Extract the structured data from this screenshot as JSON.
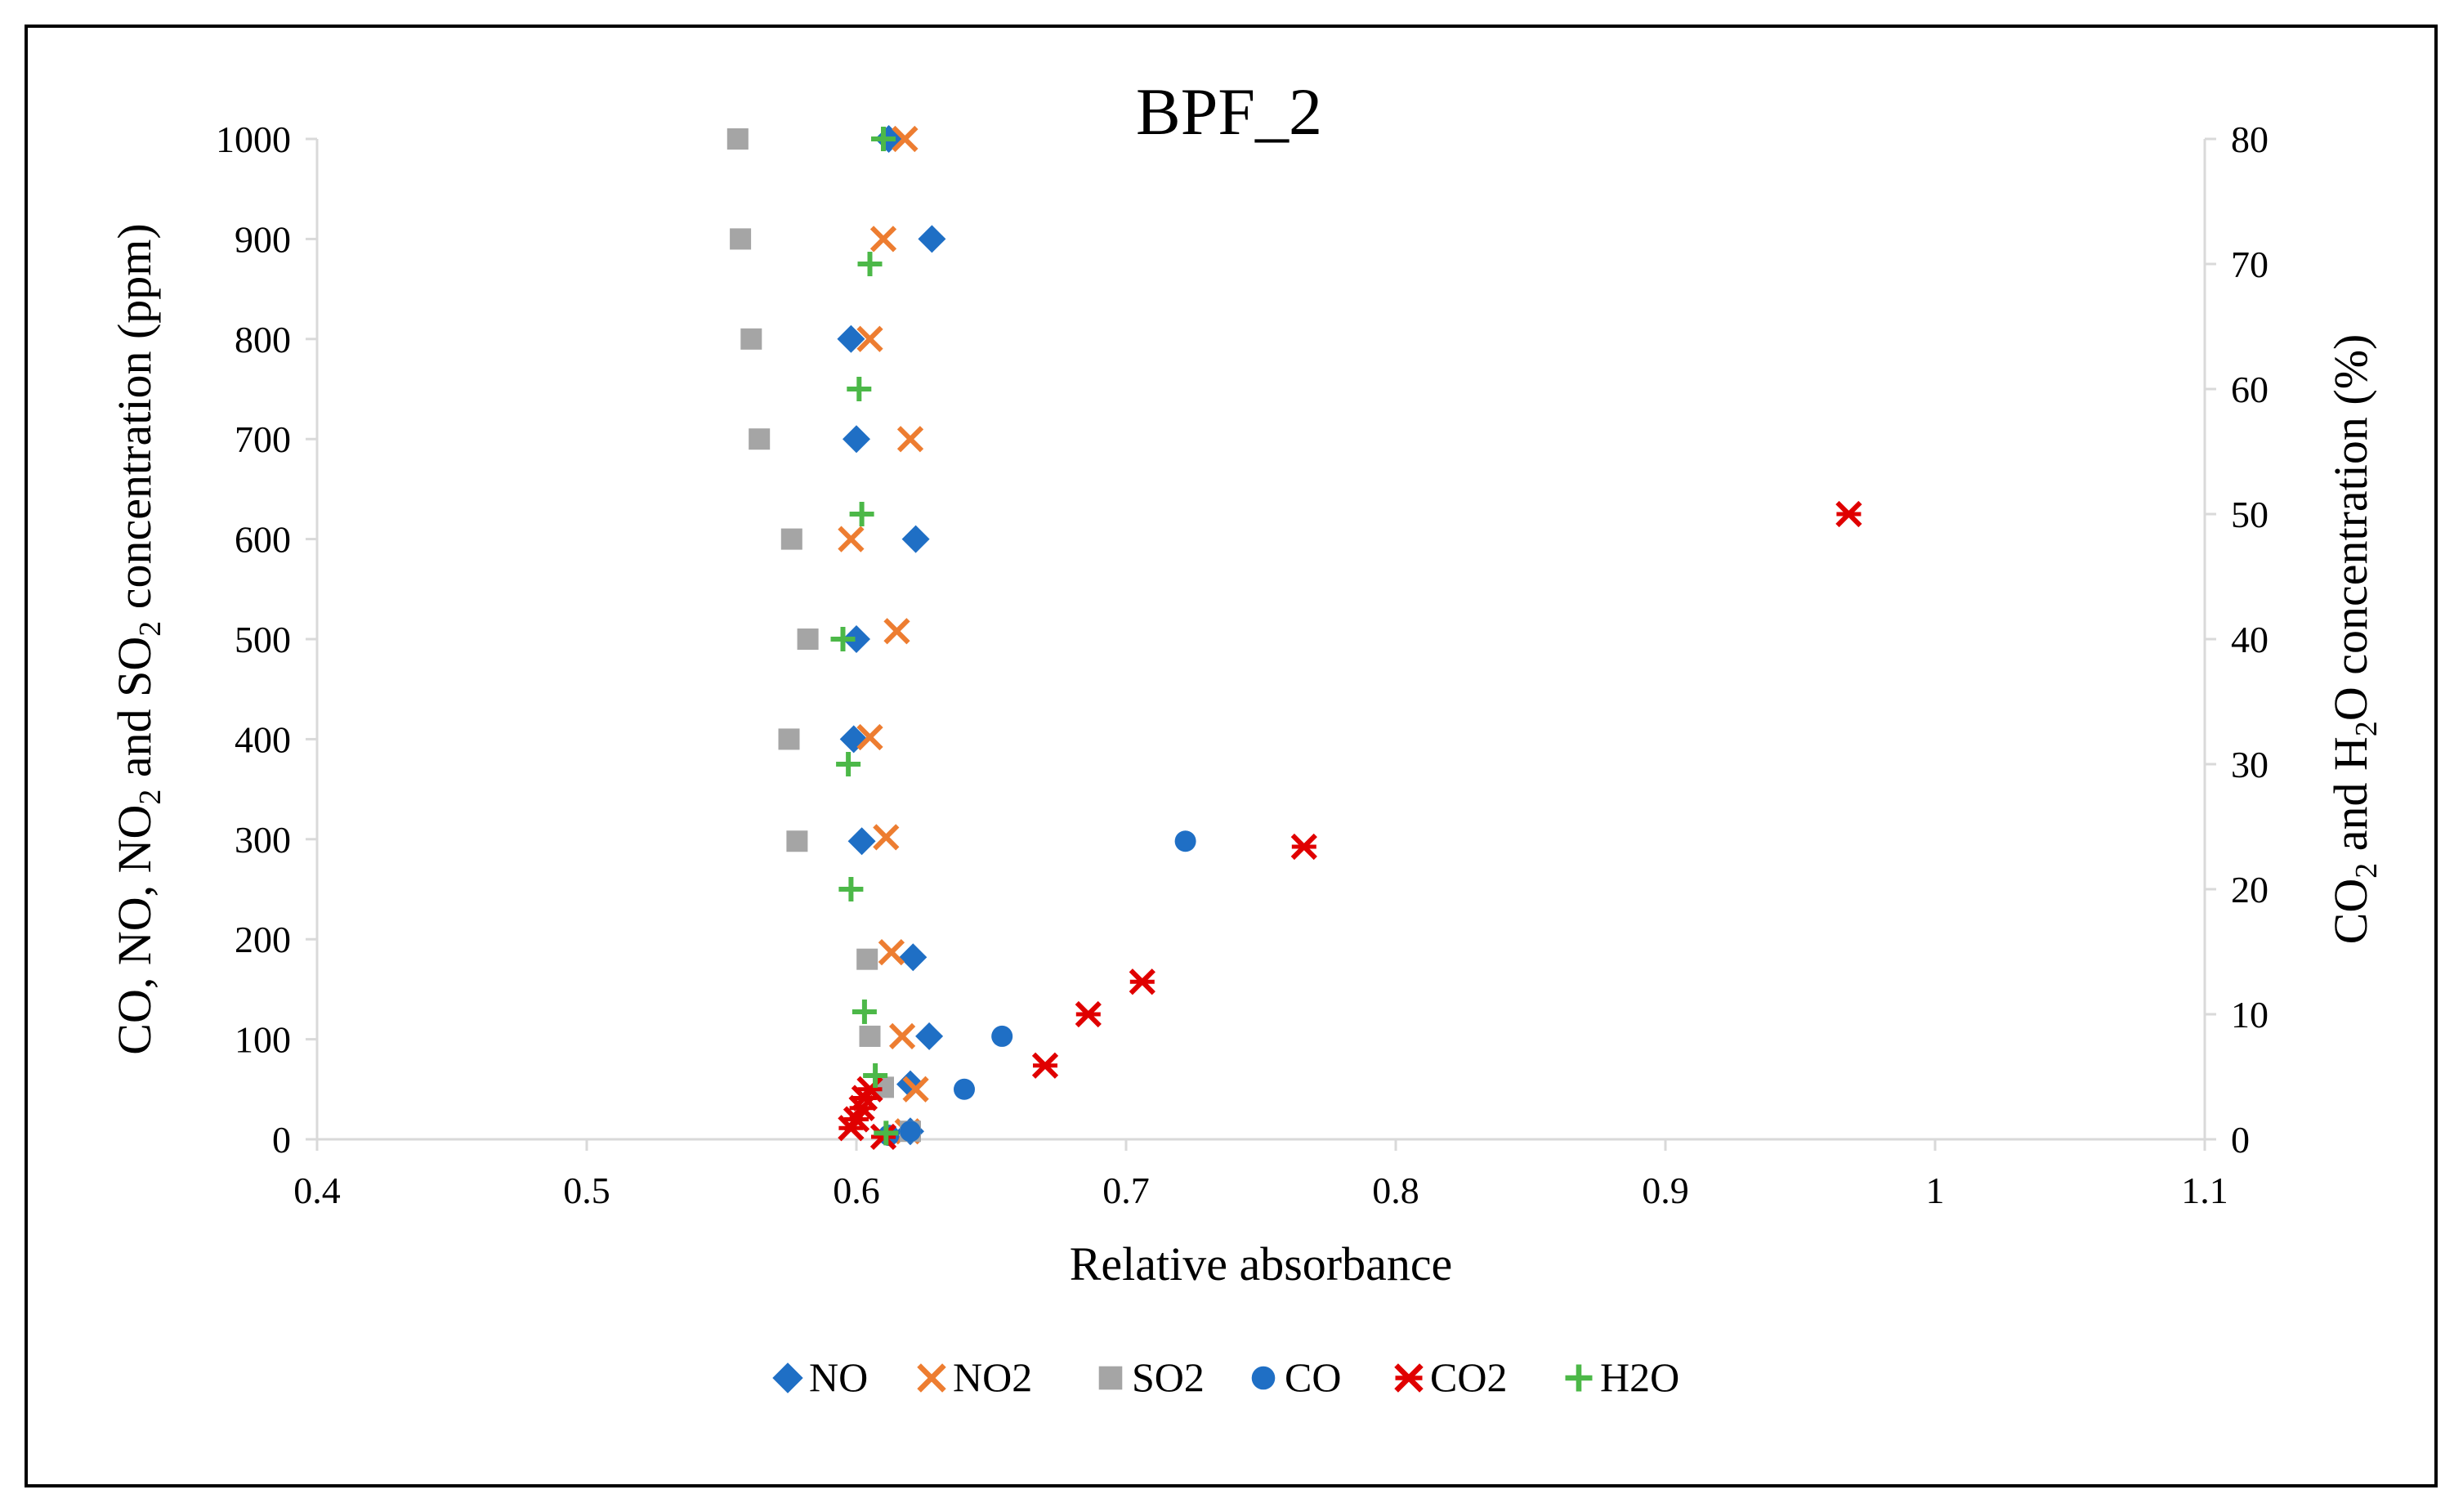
{
  "chart_data": {
    "type": "scatter",
    "title": "BPF_2",
    "xlabel": "Relative absorbance",
    "ylabel": {
      "parts": [
        {
          "t": "CO, NO, NO"
        },
        {
          "t": "2",
          "sub": true
        },
        {
          "t": " and SO"
        },
        {
          "t": "2",
          "sub": true
        },
        {
          "t": " concentration (ppm)"
        }
      ]
    },
    "y2label": {
      "parts": [
        {
          "t": "CO"
        },
        {
          "t": "2",
          "sub": true
        },
        {
          "t": " and H"
        },
        {
          "t": "2",
          "sub": true
        },
        {
          "t": "O concentration (%)"
        }
      ]
    },
    "xlim": [
      0.4,
      1.1
    ],
    "ylim": [
      0,
      1000
    ],
    "y2lim": [
      0,
      80
    ],
    "xticks": [
      0.4,
      0.5,
      0.6,
      0.7,
      0.8,
      0.9,
      1,
      1.1
    ],
    "yticks": [
      0,
      100,
      200,
      300,
      400,
      500,
      600,
      700,
      800,
      900,
      1000
    ],
    "y2ticks": [
      0,
      10,
      20,
      30,
      40,
      50,
      60,
      70,
      80
    ],
    "grid": false,
    "legend_position": "bottom",
    "series": [
      {
        "name": "NO",
        "axis": "left",
        "marker": "diamond",
        "color": "#1F6FC5",
        "points": [
          [
            0.612,
            1000
          ],
          [
            0.628,
            900
          ],
          [
            0.598,
            800
          ],
          [
            0.6,
            700
          ],
          [
            0.622,
            600
          ],
          [
            0.6,
            500
          ],
          [
            0.599,
            400
          ],
          [
            0.602,
            298
          ],
          [
            0.621,
            182
          ],
          [
            0.627,
            103
          ],
          [
            0.62,
            55
          ],
          [
            0.62,
            8
          ]
        ]
      },
      {
        "name": "NO2",
        "axis": "left",
        "marker": "x",
        "color": "#ED7D31",
        "points": [
          [
            0.618,
            1000
          ],
          [
            0.61,
            900
          ],
          [
            0.605,
            800
          ],
          [
            0.62,
            700
          ],
          [
            0.598,
            600
          ],
          [
            0.615,
            508
          ],
          [
            0.605,
            402
          ],
          [
            0.611,
            302
          ],
          [
            0.613,
            187
          ],
          [
            0.617,
            103
          ],
          [
            0.622,
            50
          ],
          [
            0.619,
            8
          ]
        ]
      },
      {
        "name": "SO2",
        "axis": "left",
        "marker": "square",
        "color": "#A5A5A5",
        "points": [
          [
            0.556,
            1000
          ],
          [
            0.557,
            900
          ],
          [
            0.561,
            800
          ],
          [
            0.564,
            700
          ],
          [
            0.576,
            600
          ],
          [
            0.582,
            500
          ],
          [
            0.575,
            400
          ],
          [
            0.578,
            298
          ],
          [
            0.604,
            180
          ],
          [
            0.605,
            103
          ],
          [
            0.61,
            52
          ],
          [
            0.62,
            8
          ]
        ]
      },
      {
        "name": "CO",
        "axis": "left",
        "marker": "circle",
        "color": "#1F6FC5",
        "points": [
          [
            0.722,
            298
          ],
          [
            0.654,
            103
          ],
          [
            0.64,
            50
          ],
          [
            0.62,
            8
          ],
          [
            0.612,
            4
          ]
        ]
      },
      {
        "name": "CO2",
        "axis": "right",
        "marker": "star",
        "color": "#E00000",
        "points": [
          [
            0.968,
            50.0
          ],
          [
            0.766,
            23.4
          ],
          [
            0.706,
            12.6
          ],
          [
            0.686,
            10.0
          ],
          [
            0.67,
            5.9
          ],
          [
            0.605,
            4.0
          ],
          [
            0.603,
            3.3
          ],
          [
            0.602,
            2.5
          ],
          [
            0.6,
            1.6
          ],
          [
            0.598,
            0.9
          ],
          [
            0.61,
            0.2
          ]
        ]
      },
      {
        "name": "H2O",
        "axis": "right",
        "marker": "plus",
        "color": "#4CB848",
        "points": [
          [
            0.61,
            80.0
          ],
          [
            0.605,
            70.0
          ],
          [
            0.601,
            60.0
          ],
          [
            0.602,
            50.0
          ],
          [
            0.595,
            40.0
          ],
          [
            0.597,
            30.0
          ],
          [
            0.598,
            20.0
          ],
          [
            0.603,
            10.2
          ],
          [
            0.607,
            5.1
          ],
          [
            0.611,
            0.5
          ]
        ]
      }
    ]
  }
}
